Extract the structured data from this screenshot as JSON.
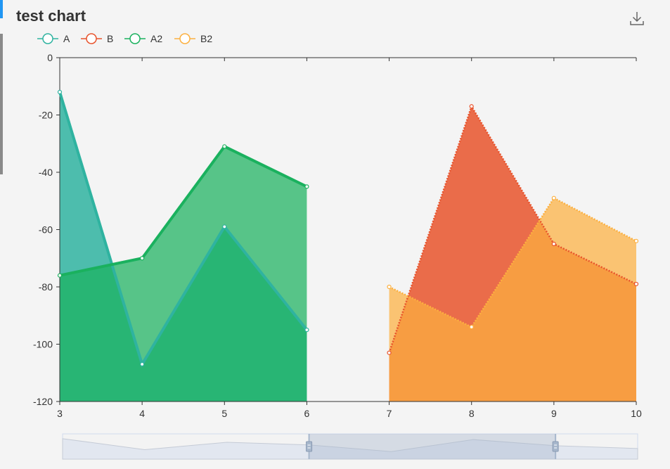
{
  "title": "test chart",
  "toolbox": {
    "icon": "download-icon"
  },
  "chart_data": {
    "type": "area",
    "x": [
      3,
      4,
      5,
      6,
      7,
      8,
      9,
      10
    ],
    "ylim": [
      -120,
      0
    ],
    "y_ticks": [
      0,
      -20,
      -40,
      -60,
      -80,
      -100,
      -120
    ],
    "legend_position": "top-left",
    "series": [
      {
        "name": "A",
        "color": "#2fb3a0",
        "line_style": "solid",
        "values": [
          -12,
          -107,
          -59,
          -95,
          null,
          null,
          null,
          null
        ]
      },
      {
        "name": "B",
        "color": "#e8532c",
        "line_style": "dotted",
        "values": [
          null,
          null,
          null,
          null,
          -103,
          -17,
          -65,
          -79
        ]
      },
      {
        "name": "A2",
        "color": "#1ab15e",
        "line_style": "solid",
        "values": [
          -76,
          -70,
          -31,
          -45,
          null,
          null,
          null,
          null
        ]
      },
      {
        "name": "B2",
        "color": "#fcb040",
        "line_style": "dotted",
        "values": [
          null,
          null,
          null,
          null,
          -80,
          -94,
          -49,
          -64
        ]
      }
    ],
    "data_zoom": {
      "start_index": 3,
      "end_index": 6
    }
  }
}
